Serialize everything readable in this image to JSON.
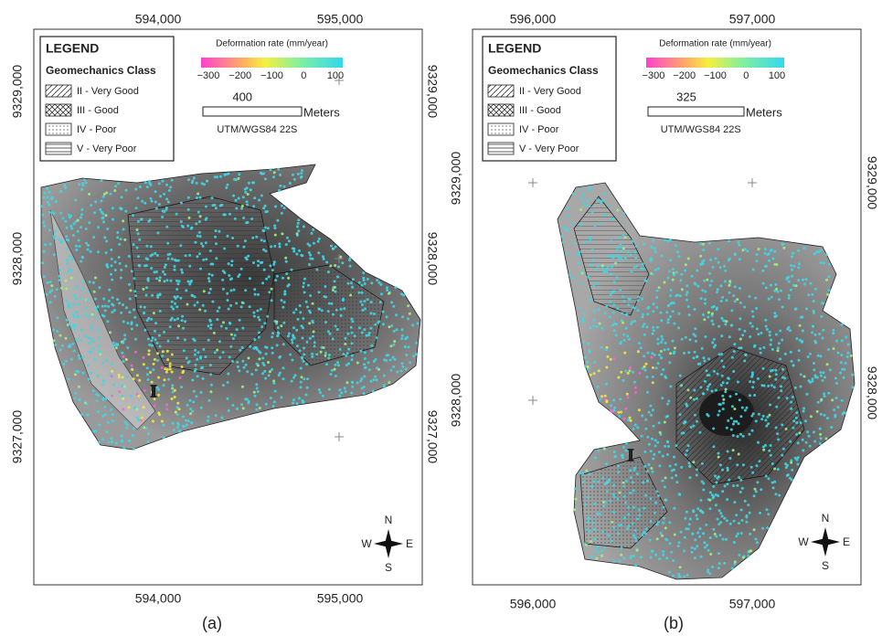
{
  "panels": [
    {
      "caption": "(a)",
      "top_labels": [
        "594,000",
        "595,000"
      ],
      "bottom_labels": [
        "594,000",
        "595,000"
      ],
      "left_labels": [
        "9329,000",
        "9328,000",
        "9327,000"
      ],
      "right_labels": [
        "9329,000",
        "9328,000",
        "9327,000"
      ],
      "legend": {
        "title": "LEGEND",
        "subtitle": "Geomechanics Class",
        "items": [
          "II - Very Good",
          "III - Good",
          "IV - Poor",
          "V - Very Poor"
        ]
      },
      "colorbar": {
        "title": "Deformation rate (mm/year)",
        "labels": [
          "−300",
          "−200",
          "−100",
          "0",
          "100"
        ]
      },
      "scale": {
        "distance": "400",
        "unit": "Meters",
        "crs": "UTM/WGS84 22S"
      },
      "compass": {
        "n": "N",
        "s": "S",
        "e": "E",
        "w": "W"
      },
      "marker": "I"
    },
    {
      "caption": "(b)",
      "top_labels": [
        "596,000",
        "597,000"
      ],
      "bottom_labels": [
        "596,000",
        "597,000"
      ],
      "left_labels": [
        "9329,000",
        "9328,000"
      ],
      "right_labels": [
        "9329,000",
        "9328,000"
      ],
      "legend": {
        "title": "LEGEND",
        "subtitle": "Geomechanics Class",
        "items": [
          "II - Very Good",
          "III - Good",
          "IV - Poor",
          "V - Very Poor"
        ]
      },
      "colorbar": {
        "title": "Deformation rate (mm/year)",
        "labels": [
          "−300",
          "−200",
          "−100",
          "0",
          "100"
        ]
      },
      "scale": {
        "distance": "325",
        "unit": "Meters",
        "crs": "UTM/WGS84 22S"
      },
      "compass": {
        "n": "N",
        "s": "S",
        "e": "E",
        "w": "W"
      },
      "marker": "I"
    }
  ]
}
